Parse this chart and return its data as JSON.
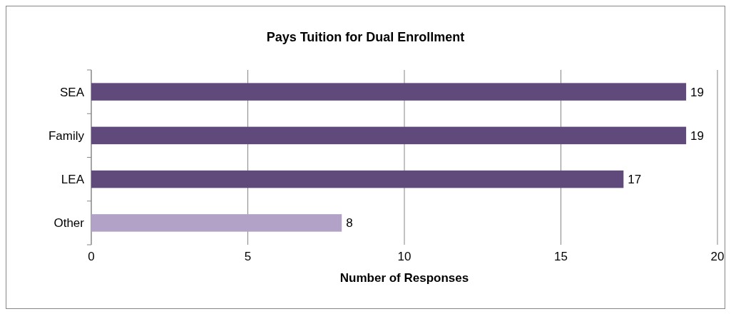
{
  "chart_data": {
    "type": "bar",
    "orientation": "horizontal",
    "title": "Pays Tuition for Dual Enrollment",
    "xlabel": "Number of Responses",
    "categories": [
      "SEA",
      "Family",
      "LEA",
      "Other"
    ],
    "values": [
      19,
      19,
      17,
      8
    ],
    "colors": [
      "#5f4a7b",
      "#5f4a7b",
      "#5f4a7b",
      "#b3a2c7"
    ],
    "xlim": [
      0,
      20
    ],
    "xticks": [
      0,
      5,
      10,
      15,
      20
    ],
    "grid": "x",
    "data_labels": true
  }
}
